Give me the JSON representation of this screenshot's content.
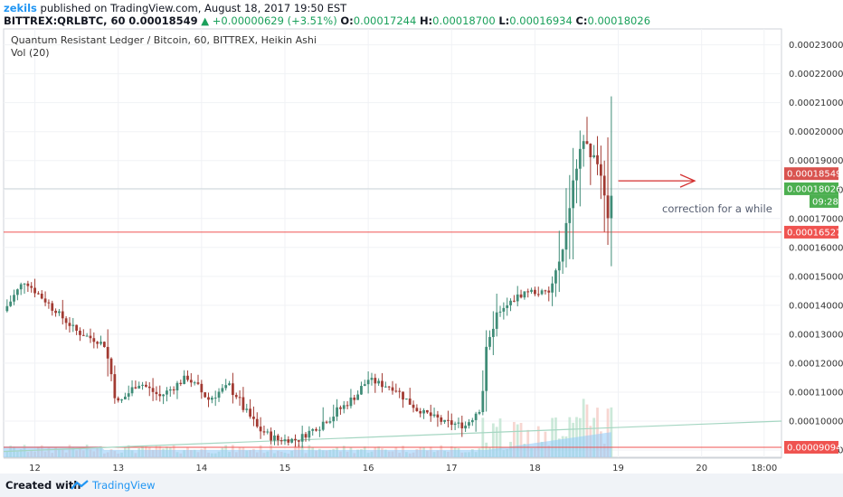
{
  "header": {
    "author": "zekils",
    "published_text": "published on TradingView.com, August 18, 2017 19:50 EST",
    "symbol": "BITTREX:QRLBTC, 60",
    "last": "0.00018549",
    "change_arrow": "▲",
    "change": "+0.00000629 (+3.51%)",
    "o_label": "O:",
    "o_value": "0.00017244",
    "h_label": "H:",
    "h_value": "0.00018700",
    "l_label": "L:",
    "l_value": "0.00016934",
    "c_label": "C:",
    "c_value": "0.00018026"
  },
  "legend": {
    "title": "Quantum Resistant Ledger / Bitcoin, 60, BITTREX, Heikin Ashi",
    "vol": "Vol (20)"
  },
  "annotation": {
    "text": "correction for a while"
  },
  "footer": {
    "created_with": "Created with",
    "brand": "TradingView"
  },
  "colors": {
    "up": "#3f8c77",
    "down": "#a23a32",
    "volume": "#90caf9",
    "hline": "#ef5350",
    "trend": "#a5d6c2",
    "brand": "#2196f3"
  },
  "chart_data": {
    "type": "candlestick",
    "style": "Heikin Ashi",
    "y_ticks": [
      "0.00009000",
      "0.00010000",
      "0.00011000",
      "0.00012000",
      "0.00013000",
      "0.00014000",
      "0.00015000",
      "0.00016000",
      "0.00017000",
      "0.00018000",
      "0.00019000",
      "0.00020000",
      "0.00021000",
      "0.00022000",
      "0.00023000"
    ],
    "x_ticks": [
      {
        "label": "12",
        "x": 0
      },
      {
        "label": "13",
        "x": 24
      },
      {
        "label": "14",
        "x": 48
      },
      {
        "label": "15",
        "x": 72
      },
      {
        "label": "16",
        "x": 96
      },
      {
        "label": "17",
        "x": 120
      },
      {
        "label": "18",
        "x": 144
      },
      {
        "label": "19",
        "x": 168
      },
      {
        "label": "20",
        "x": 192
      },
      {
        "label": "18:00",
        "x": 210
      }
    ],
    "ylim": [
      8.75e-05,
      0.0002355
    ],
    "xlim": [
      -9,
      215
    ],
    "price_labels": [
      {
        "value": 0.00018549,
        "text": "0.00018549",
        "color": "#d9534f"
      },
      {
        "value": 0.00018026,
        "text": "0.00018026",
        "color": "#4caf50"
      },
      {
        "value": 0.00016527,
        "text": "0.00016527",
        "color": "#ef5350"
      },
      {
        "value": 9.094e-05,
        "text": "0.00009094",
        "color": "#ef5350"
      }
    ],
    "countdown": "09:28",
    "horizontal_lines": [
      0.00016527,
      9.094e-05
    ],
    "trend_line": {
      "x": [
        -9,
        215
      ],
      "y": [
        8.95e-05,
        0.0001
      ]
    },
    "arrow": {
      "x": [
        168,
        190
      ],
      "y": [
        0.000183,
        0.000183
      ]
    },
    "key_points": [
      {
        "x": -9,
        "price": 0.000138
      },
      {
        "x": -3,
        "price": 0.0001485
      },
      {
        "x": 4,
        "price": 0.0001405
      },
      {
        "x": 12,
        "price": 0.000131
      },
      {
        "x": 20,
        "price": 0.0001265
      },
      {
        "x": 24,
        "price": 0.000106
      },
      {
        "x": 30,
        "price": 0.0001135
      },
      {
        "x": 36,
        "price": 0.0001085
      },
      {
        "x": 44,
        "price": 0.000115
      },
      {
        "x": 50,
        "price": 0.0001075
      },
      {
        "x": 56,
        "price": 0.0001125
      },
      {
        "x": 64,
        "price": 9.75e-05
      },
      {
        "x": 70,
        "price": 9.35e-05
      },
      {
        "x": 76,
        "price": 9.35e-05
      },
      {
        "x": 84,
        "price": 0.0001005
      },
      {
        "x": 92,
        "price": 0.000108
      },
      {
        "x": 96,
        "price": 0.0001145
      },
      {
        "x": 104,
        "price": 0.000111
      },
      {
        "x": 110,
        "price": 0.000104
      },
      {
        "x": 118,
        "price": 9.95e-05
      },
      {
        "x": 124,
        "price": 9.85e-05
      },
      {
        "x": 128,
        "price": 0.000105
      },
      {
        "x": 132,
        "price": 0.000135
      },
      {
        "x": 138,
        "price": 0.000142
      },
      {
        "x": 142,
        "price": 0.000145
      },
      {
        "x": 148,
        "price": 0.000144
      },
      {
        "x": 152,
        "price": 0.000158
      },
      {
        "x": 155,
        "price": 0.00018
      },
      {
        "x": 158,
        "price": 0.000197
      },
      {
        "x": 161,
        "price": 0.000191
      },
      {
        "x": 163,
        "price": 0.000186
      },
      {
        "x": 165,
        "price": 0.000172
      },
      {
        "x": 166,
        "price": 0.000181
      }
    ]
  }
}
